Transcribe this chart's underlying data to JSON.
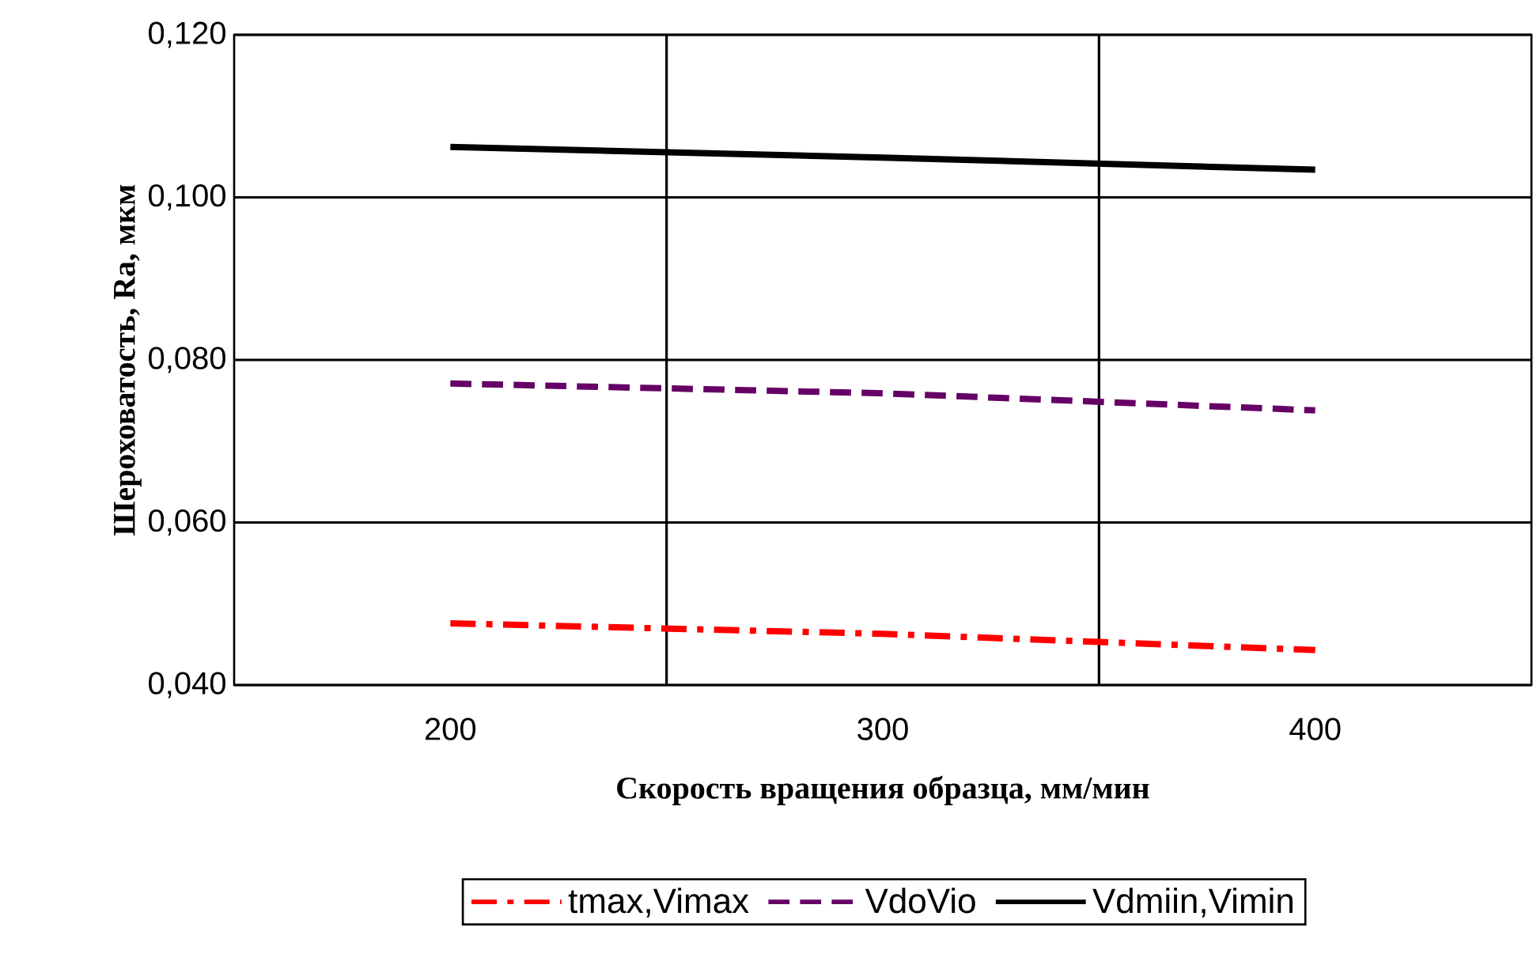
{
  "chart_data": {
    "type": "line",
    "xlabel": "Скорость вращения образца, мм/мин",
    "ylabel": "Шероховатость, Ra, мкм",
    "categories": [
      "200",
      "300",
      "400"
    ],
    "series": [
      {
        "name": "tmax,Vimax",
        "color": "#ff0000",
        "line_style": "dashdot",
        "values": [
          0.0476,
          0.0463,
          0.0443
        ]
      },
      {
        "name": "VdoVio",
        "color": "#660066",
        "line_style": "dashed",
        "values": [
          0.0771,
          0.0759,
          0.0738
        ]
      },
      {
        "name": "Vdmiin,Vimin",
        "color": "#000000",
        "line_style": "solid",
        "values": [
          0.1062,
          0.1049,
          0.1034
        ]
      }
    ],
    "ylim": [
      0.04,
      0.12
    ],
    "yticks": [
      {
        "value": 0.04,
        "label": "0,040"
      },
      {
        "value": 0.06,
        "label": "0,060"
      },
      {
        "value": 0.08,
        "label": "0,080"
      },
      {
        "value": 0.1,
        "label": "0,100"
      },
      {
        "value": 0.12,
        "label": "0,120"
      }
    ],
    "grid": true,
    "legend": "bottom",
    "marker": "none"
  }
}
